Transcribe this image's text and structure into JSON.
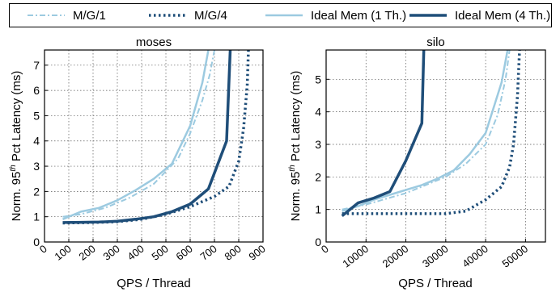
{
  "legend": [
    {
      "label": "M/G/1",
      "color": "#9ccae0",
      "style": "dashdot",
      "width": 2
    },
    {
      "label": "M/G/4",
      "color": "#1f4e79",
      "style": "dotted",
      "width": 3.5
    },
    {
      "label": "Ideal Mem (1 Th.)",
      "color": "#9ccae0",
      "style": "solid",
      "width": 2.5
    },
    {
      "label": "Ideal Mem (4 Th.)",
      "color": "#1f4e79",
      "style": "solid",
      "width": 3.5
    }
  ],
  "chart_data": [
    {
      "type": "line",
      "title": "moses",
      "xlabel": "QPS / Thread",
      "ylabel": "Norm. 95th Pct Latency (ms)",
      "xlim": [
        0,
        900
      ],
      "ylim": [
        0,
        7.6
      ],
      "xticks": [
        0,
        100,
        200,
        300,
        400,
        500,
        600,
        700,
        800,
        900
      ],
      "yticks": [
        0,
        1,
        2,
        3,
        4,
        5,
        6,
        7
      ],
      "grid": true,
      "series": [
        {
          "name": "M/G/1",
          "x": [
            75,
            150,
            250,
            350,
            450,
            550,
            600,
            650,
            680,
            700
          ],
          "y": [
            1.0,
            1.1,
            1.35,
            1.75,
            2.3,
            3.3,
            4.3,
            5.6,
            6.6,
            7.6
          ]
        },
        {
          "name": "M/G/4",
          "x": [
            75,
            200,
            300,
            400,
            500,
            600,
            700,
            760,
            800,
            820,
            835,
            840
          ],
          "y": [
            0.75,
            0.77,
            0.8,
            0.9,
            1.1,
            1.4,
            1.8,
            2.2,
            3.2,
            4.5,
            6.2,
            7.6
          ]
        },
        {
          "name": "Ideal Mem (1 Th.)",
          "x": [
            75,
            150,
            225,
            300,
            375,
            450,
            525,
            600,
            650,
            675
          ],
          "y": [
            0.9,
            1.2,
            1.35,
            1.65,
            2.05,
            2.5,
            3.1,
            4.6,
            6.3,
            7.6
          ]
        },
        {
          "name": "Ideal Mem (4 Th.)",
          "x": [
            75,
            150,
            225,
            300,
            375,
            450,
            525,
            600,
            675,
            750,
            765
          ],
          "y": [
            0.77,
            0.78,
            0.79,
            0.82,
            0.9,
            1.0,
            1.2,
            1.5,
            2.1,
            4.0,
            7.6
          ]
        }
      ]
    },
    {
      "type": "line",
      "title": "silo",
      "xlabel": "QPS / Thread",
      "ylabel": "Norm. 95th Pct Latency (ms)",
      "xlim": [
        0,
        55000
      ],
      "ylim": [
        0,
        5.9
      ],
      "xticks": [
        0,
        10000,
        20000,
        30000,
        40000,
        50000
      ],
      "yticks": [
        0,
        1,
        2,
        3,
        4,
        5
      ],
      "grid": true,
      "series": [
        {
          "name": "M/G/1",
          "x": [
            4000,
            10000,
            20000,
            30000,
            35000,
            40000,
            43000,
            45000,
            46000
          ],
          "y": [
            1.0,
            1.15,
            1.5,
            2.0,
            2.4,
            3.0,
            3.9,
            5.0,
            5.9
          ]
        },
        {
          "name": "M/G/4",
          "x": [
            4000,
            10000,
            20000,
            30000,
            35000,
            40000,
            44000,
            46000,
            47000,
            48000,
            48500
          ],
          "y": [
            0.87,
            0.87,
            0.87,
            0.87,
            0.95,
            1.3,
            1.7,
            2.3,
            3.0,
            4.5,
            5.9
          ]
        },
        {
          "name": "Ideal Mem (1 Th.)",
          "x": [
            4000,
            8000,
            12000,
            16000,
            20000,
            24000,
            28000,
            32000,
            36000,
            40000,
            44000,
            45500
          ],
          "y": [
            0.95,
            1.1,
            1.3,
            1.45,
            1.6,
            1.75,
            1.95,
            2.2,
            2.7,
            3.35,
            4.9,
            5.9
          ]
        },
        {
          "name": "Ideal Mem (4 Th.)",
          "x": [
            4000,
            8000,
            12000,
            16000,
            20000,
            24000,
            24500
          ],
          "y": [
            0.8,
            1.2,
            1.35,
            1.55,
            2.5,
            3.65,
            5.9
          ]
        }
      ]
    }
  ]
}
